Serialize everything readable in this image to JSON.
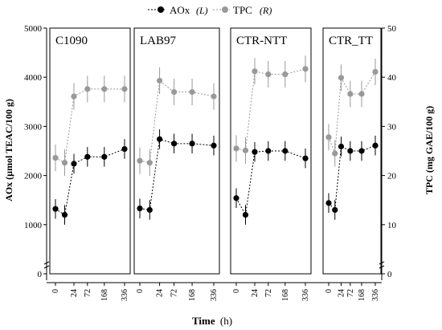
{
  "legend": {
    "items": [
      {
        "label": "AOx",
        "suffix": "(L)",
        "color": "#000000",
        "dash": true
      },
      {
        "label": "TPC",
        "suffix": "(R)",
        "color": "#999999",
        "dash": true
      }
    ]
  },
  "axes": {
    "left_label": "AOx (µmol TEAC/100 g)",
    "right_label": "TPC (mg GAE/100 g)",
    "x_label_main": "Time",
    "x_label_unit": "(h)"
  },
  "chart_data": {
    "type": "line",
    "x": [
      0,
      6,
      24,
      72,
      168,
      336
    ],
    "x_tick_labels": [
      "0",
      "24",
      "72",
      "168",
      "336"
    ],
    "x_ticks": [
      0,
      24,
      72,
      168,
      336
    ],
    "x_scale": "sqrt",
    "y_left": {
      "label": "AOx (µmol TEAC/100 g)",
      "range": [
        0,
        5000
      ],
      "ticks": [
        0,
        1000,
        2000,
        3000,
        4000,
        5000
      ],
      "axis_break": true
    },
    "y_right": {
      "label": "TPC (mg GAE/100 g)",
      "range": [
        0,
        50
      ],
      "ticks": [
        0,
        10,
        20,
        30,
        40,
        50
      ],
      "axis_break": true
    },
    "series_meta": [
      {
        "name": "AOx (L)",
        "color": "#000000",
        "axis": "left"
      },
      {
        "name": "TPC (R)",
        "color": "#999999",
        "axis": "right"
      }
    ],
    "panels": [
      {
        "title": "C1090",
        "series": [
          {
            "name": "AOx",
            "axis": "left",
            "values": [
              1320,
              1200,
              2240,
              2380,
              2380,
              2540
            ],
            "errors": [
              200,
              200,
              200,
              200,
              200,
              200
            ]
          },
          {
            "name": "TPC",
            "axis": "right",
            "values": [
              23.6,
              22.6,
              36.1,
              37.6,
              37.6,
              37.6
            ],
            "errors": [
              2.7,
              2.7,
              2.7,
              2.7,
              2.7,
              2.7
            ]
          }
        ]
      },
      {
        "title": "LAB97",
        "series": [
          {
            "name": "AOx",
            "axis": "left",
            "values": [
              1330,
              1300,
              2740,
              2650,
              2650,
              2610
            ],
            "errors": [
              200,
              200,
              200,
              200,
              200,
              200
            ]
          },
          {
            "name": "TPC",
            "axis": "right",
            "values": [
              23.0,
              22.6,
              39.3,
              37.0,
              37.0,
              36.1
            ],
            "errors": [
              2.7,
              2.7,
              2.7,
              2.7,
              2.7,
              2.7
            ]
          }
        ]
      },
      {
        "title": "CTR-NTT",
        "series": [
          {
            "name": "AOx",
            "axis": "left",
            "values": [
              1540,
              1200,
              2480,
              2500,
              2500,
              2350
            ],
            "errors": [
              200,
              200,
              200,
              200,
              200,
              200
            ]
          },
          {
            "name": "TPC",
            "axis": "right",
            "values": [
              25.5,
              25.1,
              41.2,
              40.6,
              40.6,
              41.7
            ],
            "errors": [
              2.7,
              2.7,
              2.7,
              2.7,
              2.7,
              2.7
            ]
          }
        ]
      },
      {
        "title": "CTR_TT",
        "series": [
          {
            "name": "AOx",
            "axis": "left",
            "values": [
              1440,
              1300,
              2590,
              2500,
              2500,
              2610
            ],
            "errors": [
              200,
              200,
              200,
              200,
              200,
              200
            ]
          },
          {
            "name": "TPC",
            "axis": "right",
            "values": [
              27.8,
              24.5,
              39.9,
              36.6,
              36.6,
              41.1
            ],
            "errors": [
              2.7,
              2.7,
              2.7,
              2.7,
              2.7,
              2.7
            ]
          }
        ]
      }
    ]
  }
}
